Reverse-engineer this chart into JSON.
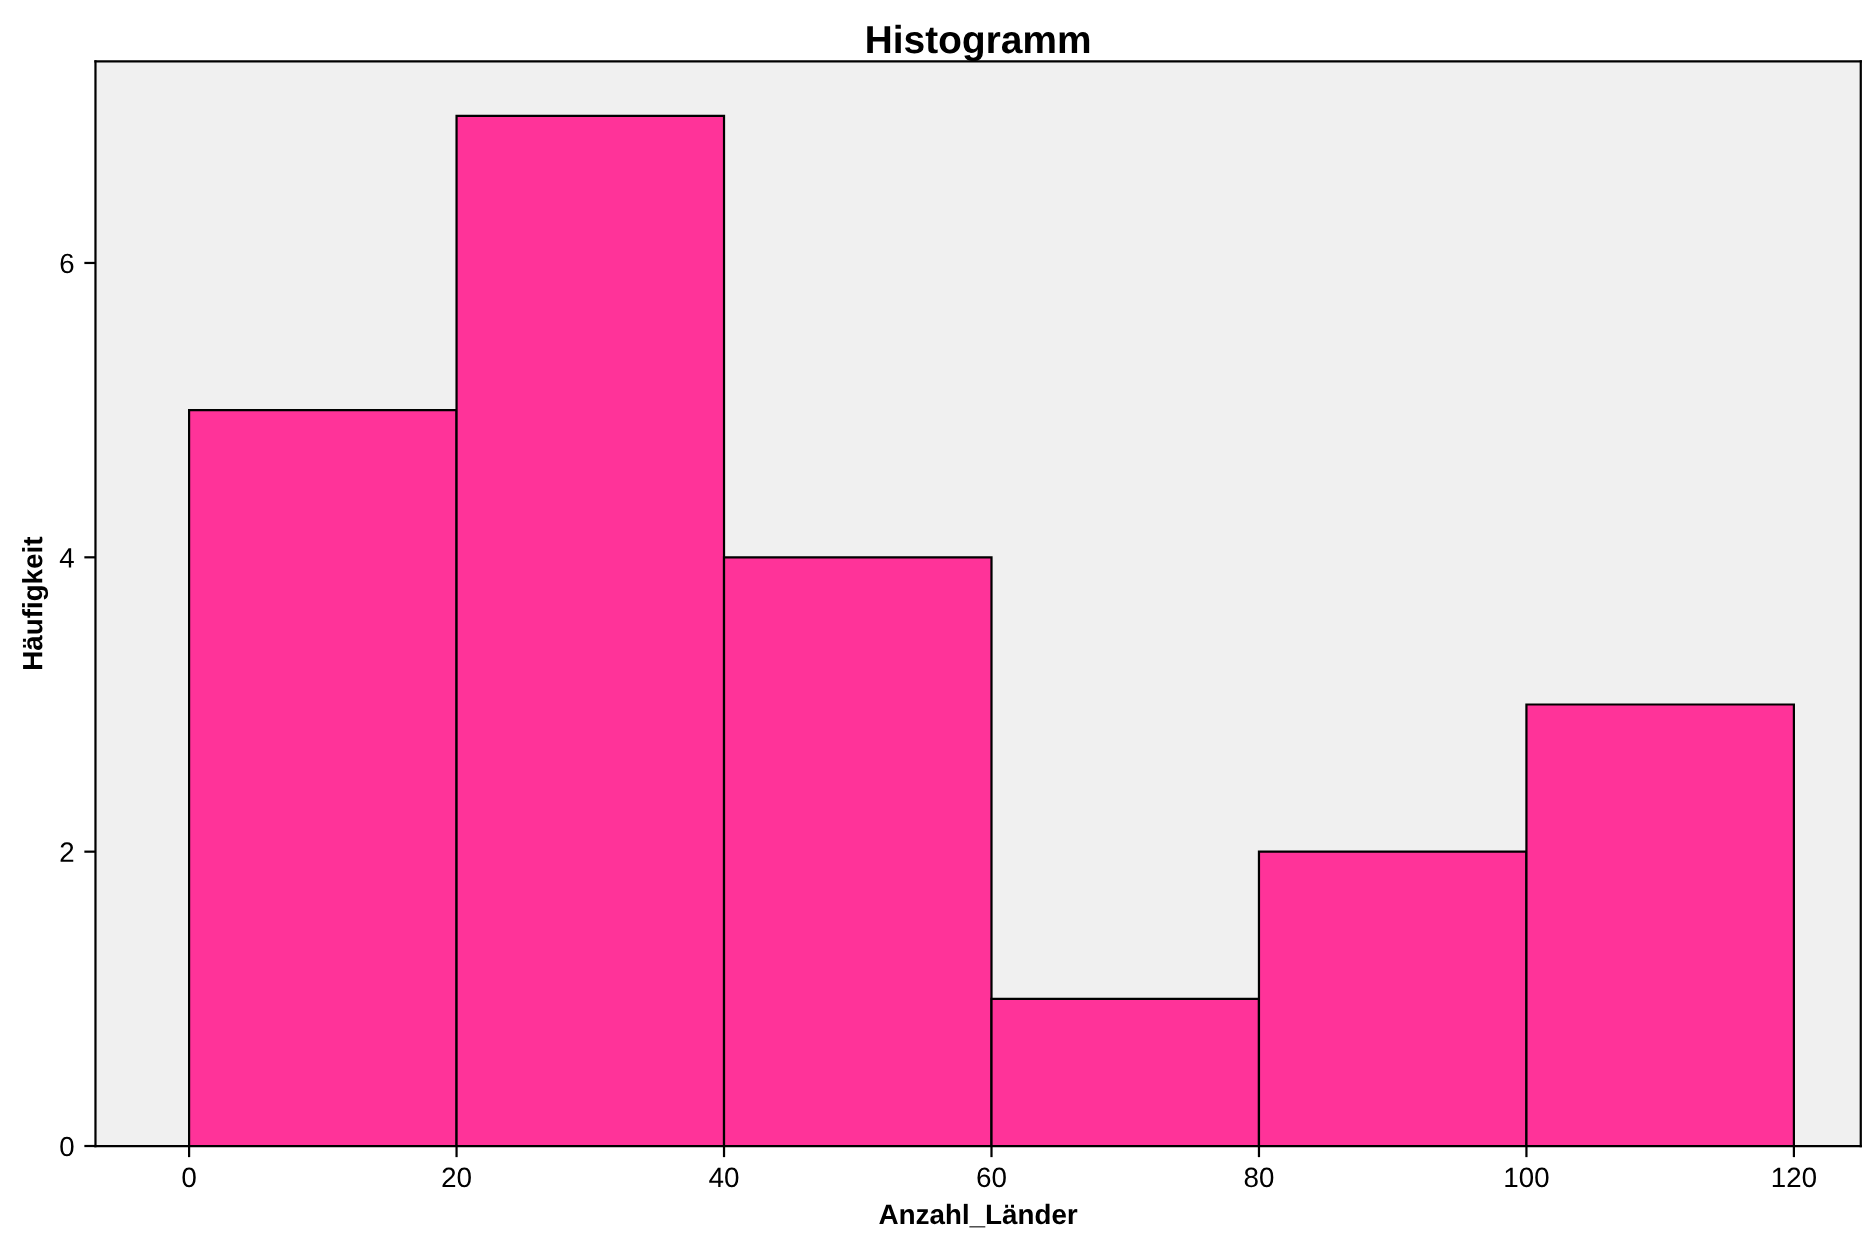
{
  "chart_data": {
    "type": "histogram",
    "title": "Histogramm",
    "xlabel": "Anzahl_Länder",
    "ylabel": "Häufigkeit",
    "bins": [
      0,
      20,
      40,
      60,
      80,
      100,
      120
    ],
    "values": [
      5,
      7,
      4,
      1,
      2,
      3
    ],
    "color": "#ff3399",
    "xlim": [
      -7,
      125
    ],
    "xticks": [
      0,
      20,
      40,
      60,
      80,
      100,
      120
    ],
    "ylim": [
      0,
      7.37
    ],
    "yticks": [
      0,
      2,
      4,
      6
    ],
    "grid": false
  }
}
